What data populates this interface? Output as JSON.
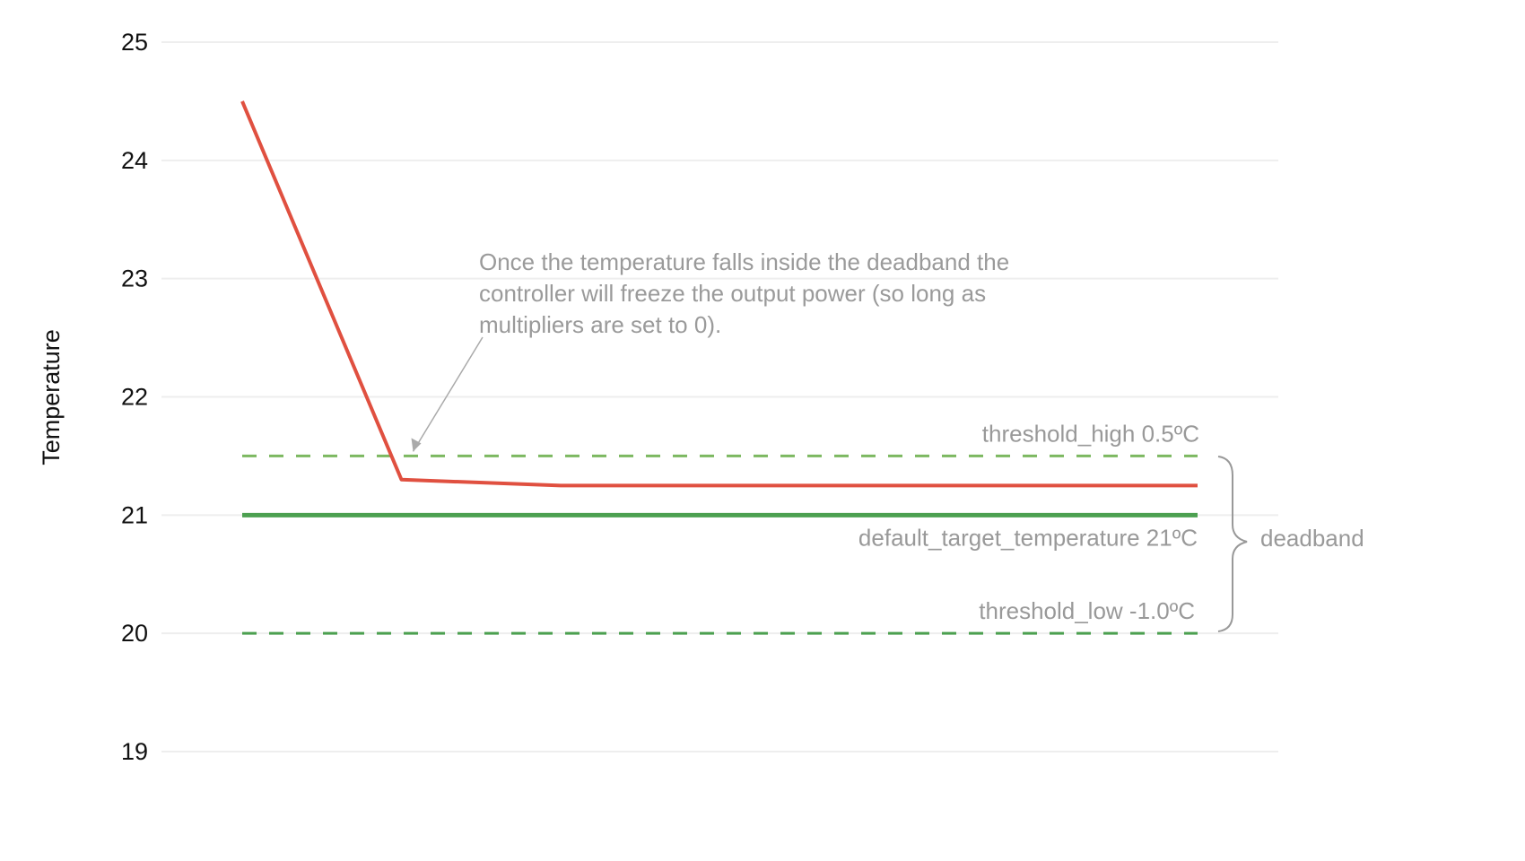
{
  "chart_data": {
    "type": "line",
    "title": "",
    "xlabel": "",
    "ylabel": "Temperature",
    "ylim": [
      19,
      25
    ],
    "yticks": [
      19,
      20,
      21,
      22,
      23,
      24,
      25
    ],
    "grid": true,
    "series": [
      {
        "x": [
          0,
          1,
          2,
          6
        ],
        "values": [
          24.5,
          21.3,
          21.25,
          21.25
        ],
        "color": "#e05040",
        "style": "solid"
      }
    ],
    "reference_lines": [
      {
        "y": 21.5,
        "label": "threshold_high  0.5ºC",
        "color": "#7cb860",
        "style": "dashed"
      },
      {
        "y": 21,
        "label": "default_target_temperature  21ºC",
        "color": "#4ca050",
        "style": "solid"
      },
      {
        "y": 20,
        "label": "threshold_low  -1.0ºC",
        "color": "#4ca050",
        "style": "dashed"
      }
    ],
    "brace_label": "deadband",
    "annotation": {
      "lines": [
        "Once the temperature falls inside the deadband the",
        "controller will freeze the output power (so long as",
        "multipliers are set to 0)."
      ],
      "points_to": {
        "x": 1,
        "y": 21.5
      }
    }
  }
}
